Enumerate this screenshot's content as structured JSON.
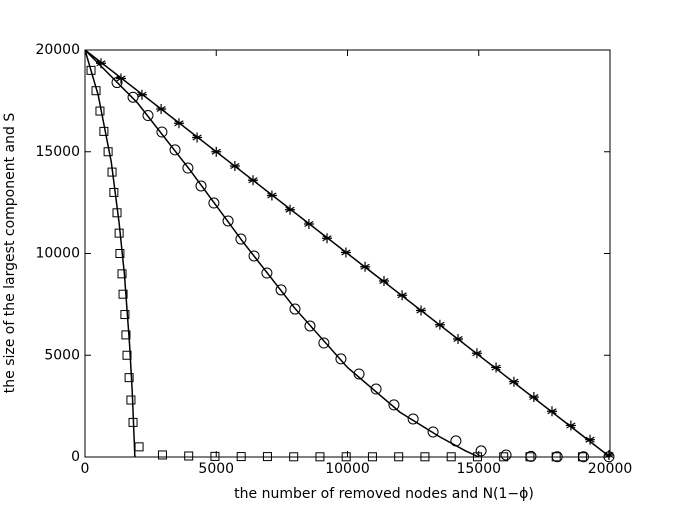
{
  "chart_data": {
    "type": "scatter",
    "xlabel": "the number of removed nodes and N(1−ϕ)",
    "ylabel": "the size of the largest component and S",
    "xlim": [
      0,
      20000
    ],
    "ylim": [
      0,
      20000
    ],
    "xticks": [
      0,
      5000,
      10000,
      15000,
      20000
    ],
    "yticks": [
      0,
      5000,
      10000,
      15000,
      20000
    ],
    "grid": false,
    "series": [
      {
        "marker": "square",
        "color": "#000000",
        "x": [
          230,
          420,
          570,
          720,
          880,
          1030,
          1100,
          1220,
          1300,
          1330,
          1410,
          1450,
          1520,
          1560,
          1600,
          1680,
          1750,
          1830,
          2060,
          2950,
          3950,
          4950,
          5950,
          6950,
          7950,
          8950,
          9950,
          10950,
          11950,
          12950,
          13950,
          14950,
          15950,
          16950,
          17950,
          18950
        ],
        "values": [
          19000,
          18000,
          17000,
          16000,
          15000,
          14000,
          13000,
          12000,
          11000,
          10000,
          9000,
          8000,
          7000,
          6000,
          5000,
          3900,
          2800,
          1700,
          500,
          100,
          50,
          30,
          20,
          20,
          10,
          10,
          10,
          10,
          10,
          10,
          10,
          10,
          10,
          10,
          10,
          10
        ]
      },
      {
        "marker": "circle",
        "color": "#000000",
        "x": [
          1220,
          1830,
          2400,
          2930,
          3430,
          3920,
          4420,
          4910,
          5450,
          5940,
          6440,
          6930,
          7470,
          8000,
          8570,
          9100,
          9750,
          10440,
          11090,
          11770,
          12500,
          13260,
          14130,
          15090,
          16040,
          16990,
          17990,
          18990,
          19960
        ],
        "values": [
          18400,
          17680,
          16780,
          15970,
          15090,
          14200,
          13320,
          12480,
          11600,
          10710,
          9880,
          9040,
          8210,
          7270,
          6440,
          5600,
          4820,
          4080,
          3340,
          2560,
          1870,
          1230,
          790,
          300,
          100,
          30,
          10,
          10,
          10
        ]
      },
      {
        "marker": "star",
        "color": "#000000",
        "x": [
          610,
          1370,
          2170,
          2900,
          3580,
          4270,
          5000,
          5710,
          6400,
          7120,
          7810,
          8530,
          9220,
          9940,
          10670,
          11390,
          12080,
          12800,
          13520,
          14210,
          14930,
          15660,
          16340,
          17100,
          17790,
          18510,
          19240,
          19960
        ],
        "values": [
          19350,
          18600,
          17800,
          17100,
          16400,
          15700,
          15000,
          14300,
          13600,
          12850,
          12150,
          11450,
          10750,
          10050,
          9350,
          8650,
          7950,
          7200,
          6500,
          5800,
          5100,
          4400,
          3700,
          2950,
          2250,
          1550,
          850,
          100
        ]
      },
      {
        "style": "line",
        "color": "#000000",
        "x": [
          0,
          500,
          1000,
          1300,
          1500,
          1700,
          1800,
          1900
        ],
        "values": [
          20000,
          17800,
          14500,
          11500,
          9000,
          5500,
          3200,
          0
        ]
      },
      {
        "style": "line",
        "color": "#000000",
        "x": [
          0,
          2000,
          4000,
          6000,
          8000,
          10000,
          12000,
          13500,
          14500,
          15000
        ],
        "values": [
          20000,
          17400,
          14100,
          10600,
          7300,
          4400,
          2200,
          1000,
          300,
          0
        ]
      },
      {
        "style": "line",
        "color": "#000000",
        "x": [
          0,
          19000,
          20000
        ],
        "values": [
          20000,
          1000,
          0
        ]
      }
    ]
  }
}
